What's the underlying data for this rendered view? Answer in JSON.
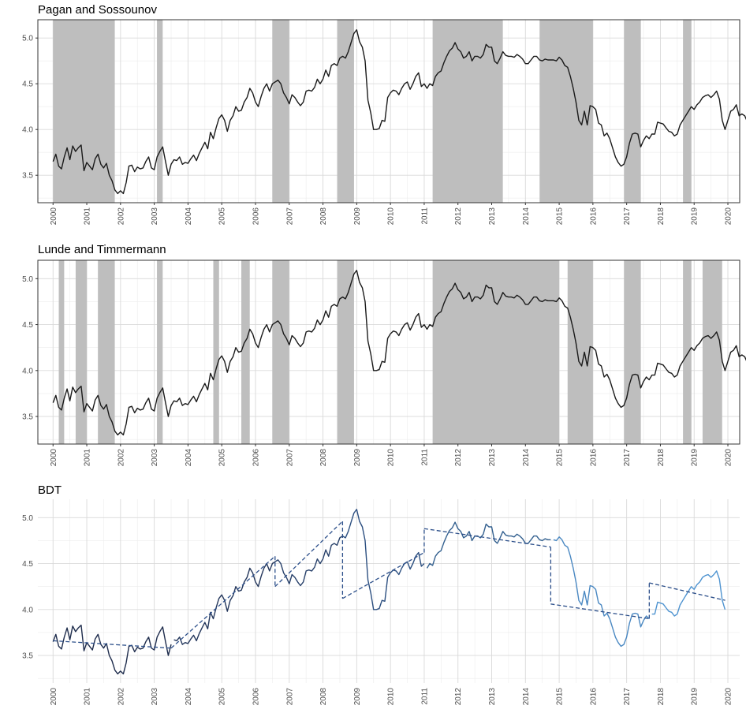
{
  "chart_data": [
    {
      "type": "line",
      "title": "Pagan and Sossounov",
      "xlabel": "",
      "ylabel": "",
      "xlim": [
        1999.55,
        2020.35
      ],
      "ylim": [
        3.2,
        5.2
      ],
      "yticks": [
        "3.5",
        "4.0",
        "4.5",
        "5.0"
      ],
      "yticks_values": [
        3.5,
        4.0,
        4.5,
        5.0
      ],
      "xticks": [
        "2000",
        "2001",
        "2002",
        "2003",
        "2004",
        "2005",
        "2006",
        "2007",
        "2008",
        "2009",
        "2010",
        "2011",
        "2012",
        "2013",
        "2014",
        "2015",
        "2016",
        "2017",
        "2018",
        "2019",
        "2020"
      ],
      "grid": true,
      "shaded_periods": [
        [
          2000.0,
          2001.83
        ],
        [
          2003.08,
          2003.25
        ],
        [
          2006.5,
          2007.0
        ],
        [
          2008.42,
          2008.92
        ],
        [
          2011.25,
          2013.33
        ],
        [
          2014.42,
          2016.0
        ],
        [
          2016.92,
          2017.42
        ],
        [
          2018.67,
          2018.92
        ]
      ],
      "line_color": "#1a1a1a",
      "shade_color": "#bebebe"
    },
    {
      "type": "line",
      "title": "Lunde and Timmermann",
      "xlabel": "",
      "ylabel": "",
      "xlim": [
        1999.55,
        2020.35
      ],
      "ylim": [
        3.2,
        5.2
      ],
      "yticks": [
        "3.5",
        "4.0",
        "4.5",
        "5.0"
      ],
      "yticks_values": [
        3.5,
        4.0,
        4.5,
        5.0
      ],
      "xticks": [
        "2000",
        "2001",
        "2002",
        "2003",
        "2004",
        "2005",
        "2006",
        "2007",
        "2008",
        "2009",
        "2010",
        "2011",
        "2012",
        "2013",
        "2014",
        "2015",
        "2016",
        "2017",
        "2018",
        "2019",
        "2020"
      ],
      "grid": true,
      "shaded_periods": [
        [
          2000.17,
          2000.33
        ],
        [
          2000.67,
          2001.0
        ],
        [
          2001.33,
          2001.83
        ],
        [
          2003.08,
          2003.25
        ],
        [
          2004.75,
          2004.92
        ],
        [
          2005.58,
          2005.83
        ],
        [
          2006.5,
          2007.0
        ],
        [
          2008.42,
          2008.92
        ],
        [
          2011.25,
          2015.0
        ],
        [
          2015.25,
          2016.0
        ],
        [
          2016.92,
          2017.42
        ],
        [
          2018.67,
          2018.92
        ],
        [
          2019.25,
          2019.83
        ]
      ],
      "line_color": "#1a1a1a",
      "shade_color": "#bebebe"
    },
    {
      "type": "line",
      "title": "BDT",
      "xlabel": "",
      "ylabel": "",
      "xlim": [
        1999.55,
        2020.35
      ],
      "ylim": [
        3.2,
        5.2
      ],
      "yticks": [
        "3.5",
        "4.0",
        "4.5",
        "5.0"
      ],
      "yticks_values": [
        3.5,
        4.0,
        4.5,
        5.0
      ],
      "xticks": [
        "2000",
        "2001",
        "2002",
        "2003",
        "2004",
        "2005",
        "2006",
        "2007",
        "2008",
        "2009",
        "2010",
        "2011",
        "2012",
        "2013",
        "2014",
        "2015",
        "2016",
        "2017",
        "2018",
        "2019",
        "2020"
      ],
      "grid": true,
      "segments": [
        {
          "start": 2000.0,
          "end": 2003.5,
          "color": "#1f2d4d",
          "trend": [
            3.66,
            3.58
          ]
        },
        {
          "start": 2003.5,
          "end": 2006.58,
          "color": "#24375c",
          "trend": [
            3.58,
            4.58
          ]
        },
        {
          "start": 2006.58,
          "end": 2008.58,
          "color": "#27406a",
          "trend": [
            4.25,
            4.96
          ]
        },
        {
          "start": 2008.58,
          "end": 2011.0,
          "color": "#2c4f80",
          "trend": [
            4.12,
            4.62
          ]
        },
        {
          "start": 2011.0,
          "end": 2014.75,
          "color": "#33608f",
          "trend": [
            4.88,
            4.68
          ]
        },
        {
          "start": 2014.75,
          "end": 2017.67,
          "color": "#4a88c2",
          "trend": [
            4.06,
            3.9
          ]
        },
        {
          "start": 2017.67,
          "end": 2019.92,
          "color": "#4e93d0",
          "trend": [
            4.29,
            4.1
          ]
        }
      ]
    }
  ],
  "series": {
    "name": "",
    "start": 2000.0,
    "step_years": 0.08333,
    "values": [
      3.65,
      3.73,
      3.6,
      3.57,
      3.7,
      3.8,
      3.67,
      3.82,
      3.76,
      3.8,
      3.83,
      3.55,
      3.64,
      3.6,
      3.56,
      3.68,
      3.73,
      3.62,
      3.58,
      3.63,
      3.5,
      3.44,
      3.34,
      3.3,
      3.33,
      3.3,
      3.42,
      3.6,
      3.61,
      3.54,
      3.59,
      3.57,
      3.58,
      3.65,
      3.7,
      3.58,
      3.56,
      3.7,
      3.76,
      3.81,
      3.65,
      3.5,
      3.62,
      3.67,
      3.66,
      3.7,
      3.62,
      3.64,
      3.63,
      3.68,
      3.72,
      3.66,
      3.74,
      3.8,
      3.86,
      3.79,
      3.97,
      3.9,
      4.02,
      4.12,
      4.16,
      4.1,
      3.98,
      4.1,
      4.15,
      4.25,
      4.2,
      4.21,
      4.3,
      4.35,
      4.45,
      4.4,
      4.3,
      4.25,
      4.36,
      4.45,
      4.5,
      4.42,
      4.5,
      4.52,
      4.54,
      4.5,
      4.4,
      4.35,
      4.28,
      4.38,
      4.35,
      4.3,
      4.26,
      4.3,
      4.42,
      4.43,
      4.42,
      4.46,
      4.55,
      4.5,
      4.55,
      4.65,
      4.58,
      4.7,
      4.72,
      4.7,
      4.78,
      4.8,
      4.78,
      4.85,
      4.95,
      5.05,
      5.09,
      4.96,
      4.9,
      4.75,
      4.32,
      4.18,
      4.0,
      4.0,
      4.01,
      4.1,
      4.09,
      4.35,
      4.4,
      4.43,
      4.42,
      4.38,
      4.45,
      4.5,
      4.52,
      4.44,
      4.5,
      4.58,
      4.62,
      4.47,
      4.5,
      4.45,
      4.5,
      4.48,
      4.58,
      4.62,
      4.64,
      4.73,
      4.8,
      4.86,
      4.89,
      4.95,
      4.88,
      4.85,
      4.78,
      4.8,
      4.85,
      4.75,
      4.8,
      4.8,
      4.78,
      4.82,
      4.93,
      4.9,
      4.9,
      4.75,
      4.72,
      4.78,
      4.85,
      4.81,
      4.8,
      4.8,
      4.79,
      4.82,
      4.8,
      4.77,
      4.72,
      4.72,
      4.76,
      4.8,
      4.8,
      4.76,
      4.75,
      4.77,
      4.76,
      4.76,
      4.76,
      4.75,
      4.79,
      4.76,
      4.7,
      4.68,
      4.58,
      4.45,
      4.3,
      4.1,
      4.05,
      4.2,
      4.05,
      4.26,
      4.25,
      4.22,
      4.07,
      4.05,
      3.93,
      3.96,
      3.9,
      3.8,
      3.7,
      3.64,
      3.6,
      3.62,
      3.7,
      3.85,
      3.95,
      3.96,
      3.95,
      3.81,
      3.88,
      3.93,
      3.9,
      3.95,
      3.95,
      4.08,
      4.07,
      4.06,
      4.02,
      3.98,
      3.97,
      3.93,
      3.95,
      4.05,
      4.1,
      4.15,
      4.2,
      4.25,
      4.22,
      4.27,
      4.3,
      4.35,
      4.37,
      4.38,
      4.35,
      4.38,
      4.42,
      4.33,
      4.1,
      4.0,
      4.1,
      4.2,
      4.22,
      4.27,
      4.15,
      4.17,
      4.15,
      4.08,
      4.1,
      4.08,
      4.1,
      4.16
    ]
  }
}
